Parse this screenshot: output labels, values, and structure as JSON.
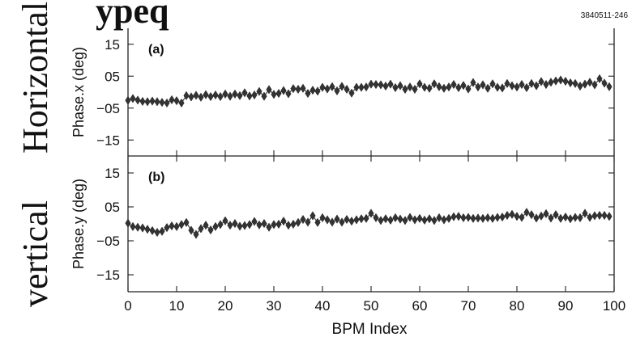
{
  "figure_id": "3840511-246",
  "side_labels": {
    "top": "Horizontal",
    "bottom": "vertical"
  },
  "header_fragment": "ypeq",
  "chart_data": [
    {
      "type": "line",
      "panel_label": "(a)",
      "ylabel": "Phase.x (deg)",
      "xlabel": "BPM Index",
      "xlim": [
        0,
        100
      ],
      "ylim": [
        -20,
        20
      ],
      "yticks": [
        15,
        5,
        -5,
        -15
      ],
      "ytick_labels": [
        "15",
        "05",
        "−05",
        "−15"
      ],
      "x": [
        0,
        1,
        2,
        3,
        4,
        5,
        6,
        7,
        8,
        9,
        10,
        11,
        12,
        13,
        14,
        15,
        16,
        17,
        18,
        19,
        20,
        21,
        22,
        23,
        24,
        25,
        26,
        27,
        28,
        29,
        30,
        31,
        32,
        33,
        34,
        35,
        36,
        37,
        38,
        39,
        40,
        41,
        42,
        43,
        44,
        45,
        46,
        47,
        48,
        49,
        50,
        51,
        52,
        53,
        54,
        55,
        56,
        57,
        58,
        59,
        60,
        61,
        62,
        63,
        64,
        65,
        66,
        67,
        68,
        69,
        70,
        71,
        72,
        73,
        74,
        75,
        76,
        77,
        78,
        79,
        80,
        81,
        82,
        83,
        84,
        85,
        86,
        87,
        88,
        89,
        90,
        91,
        92,
        93,
        94,
        95,
        96,
        97,
        98,
        99
      ],
      "y": [
        -2.6,
        -2.0,
        -2.5,
        -2.9,
        -3.0,
        -2.8,
        -3.0,
        -3.2,
        -3.4,
        -2.4,
        -2.7,
        -3.4,
        -1.1,
        -1.5,
        -1.0,
        -1.6,
        -0.8,
        -1.4,
        -0.9,
        -1.4,
        -0.6,
        -1.3,
        -0.6,
        -1.1,
        -0.2,
        -1.2,
        -0.9,
        0.2,
        -1.3,
        0.8,
        -0.7,
        -0.4,
        0.5,
        -0.5,
        1.1,
        0.9,
        1.2,
        -0.4,
        0.6,
        0.3,
        1.5,
        1.0,
        1.7,
        0.4,
        1.8,
        0.9,
        -0.3,
        1.5,
        1.5,
        1.6,
        2.5,
        2.4,
        2.3,
        1.9,
        2.5,
        1.4,
        2.0,
        0.9,
        1.6,
        0.9,
        2.6,
        1.5,
        1.2,
        2.6,
        1.7,
        1.2,
        1.6,
        2.4,
        1.4,
        2.1,
        1.0,
        3.0,
        1.6,
        2.3,
        1.2,
        2.6,
        1.5,
        1.3,
        2.7,
        2.0,
        1.6,
        2.4,
        1.4,
        2.7,
        2.0,
        3.3,
        2.4,
        3.1,
        3.5,
        3.8,
        3.4,
        2.9,
        2.7,
        1.9,
        2.5,
        3.1,
        2.3,
        4.2,
        2.8,
        1.7
      ]
    },
    {
      "type": "line",
      "panel_label": "(b)",
      "ylabel": "Phase.y (deg)",
      "xlabel": "BPM Index",
      "xlim": [
        0,
        100
      ],
      "ylim": [
        -20,
        20
      ],
      "yticks": [
        15,
        5,
        -5,
        -15
      ],
      "ytick_labels": [
        "15",
        "05",
        "−05",
        "−15"
      ],
      "x": [
        0,
        1,
        2,
        3,
        4,
        5,
        6,
        7,
        8,
        9,
        10,
        11,
        12,
        13,
        14,
        15,
        16,
        17,
        18,
        19,
        20,
        21,
        22,
        23,
        24,
        25,
        26,
        27,
        28,
        29,
        30,
        31,
        32,
        33,
        34,
        35,
        36,
        37,
        38,
        39,
        40,
        41,
        42,
        43,
        44,
        45,
        46,
        47,
        48,
        49,
        50,
        51,
        52,
        53,
        54,
        55,
        56,
        57,
        58,
        59,
        60,
        61,
        62,
        63,
        64,
        65,
        66,
        67,
        68,
        69,
        70,
        71,
        72,
        73,
        74,
        75,
        76,
        77,
        78,
        79,
        80,
        81,
        82,
        83,
        84,
        85,
        86,
        87,
        88,
        89,
        90,
        91,
        92,
        93,
        94,
        95,
        96,
        97,
        98,
        99
      ],
      "y": [
        0.2,
        -0.8,
        -1.0,
        -1.2,
        -1.6,
        -2.0,
        -2.5,
        -2.2,
        -1.1,
        -0.6,
        -0.8,
        -0.2,
        0.4,
        -1.9,
        -3.1,
        -1.4,
        -0.4,
        -1.8,
        -0.8,
        -0.2,
        0.9,
        -0.4,
        0.1,
        -0.7,
        -0.5,
        -0.2,
        0.7,
        -0.3,
        0.1,
        -1.0,
        -0.2,
        -0.1,
        0.8,
        -0.4,
        -0.1,
        0.4,
        1.3,
        0.5,
        2.4,
        0.4,
        1.8,
        1.2,
        0.5,
        1.4,
        0.5,
        1.3,
        0.8,
        1.2,
        1.5,
        1.6,
        3.1,
        1.8,
        1.0,
        1.5,
        1.1,
        1.8,
        1.4,
        1.0,
        1.9,
        1.2,
        1.6,
        1.1,
        1.5,
        1.0,
        1.8,
        1.2,
        1.6,
        2.1,
        2.2,
        1.8,
        1.9,
        1.6,
        1.7,
        1.6,
        1.8,
        1.6,
        1.9,
        2.0,
        2.5,
        2.8,
        2.2,
        1.9,
        3.4,
        2.7,
        1.7,
        2.3,
        3.0,
        1.7,
        2.7,
        1.6,
        2.0,
        1.5,
        1.9,
        1.8,
        3.1,
        1.9,
        2.4,
        2.5,
        2.5,
        2.2
      ]
    }
  ]
}
